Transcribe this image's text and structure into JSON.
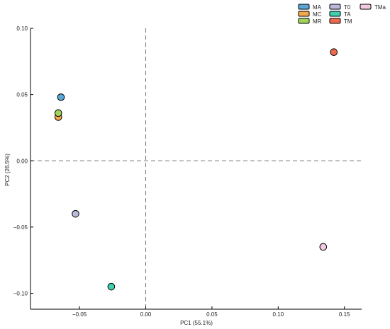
{
  "chart_data": {
    "type": "scatter",
    "xlabel": "PC1 (55.1%)",
    "ylabel": "PC2 (26.5%)",
    "xlim": [
      -0.087,
      0.163
    ],
    "ylim": [
      -0.112,
      0.1
    ],
    "xticks": [
      -0.05,
      0.0,
      0.05,
      0.1,
      0.15
    ],
    "xtick_labels": [
      "−0.05",
      "0.00",
      "0.05",
      "0.10",
      "0.15"
    ],
    "yticks": [
      0.1,
      0.05,
      0.0,
      -0.05,
      -0.1
    ],
    "ytick_labels": [
      "0.10",
      "0.05",
      "0.00",
      "−0.05",
      "−0.10"
    ],
    "reference_lines": {
      "x": 0,
      "y": 0,
      "style": "dashed"
    },
    "legend_position": "top-right",
    "series": [
      {
        "name": "MA",
        "color": "#5aa7d6",
        "x": -0.064,
        "y": 0.048
      },
      {
        "name": "MC",
        "color": "#f5a94e",
        "x": -0.066,
        "y": 0.033
      },
      {
        "name": "MR",
        "color": "#9fd65a",
        "x": -0.066,
        "y": 0.036
      },
      {
        "name": "T0",
        "color": "#b9b9dc",
        "x": -0.053,
        "y": -0.04
      },
      {
        "name": "TA",
        "color": "#3fd1b0",
        "x": -0.026,
        "y": -0.095
      },
      {
        "name": "TM",
        "color": "#ee6a4e",
        "x": 0.142,
        "y": 0.082
      },
      {
        "name": "TMa",
        "color": "#f4c9e2",
        "x": 0.134,
        "y": -0.065
      }
    ]
  }
}
